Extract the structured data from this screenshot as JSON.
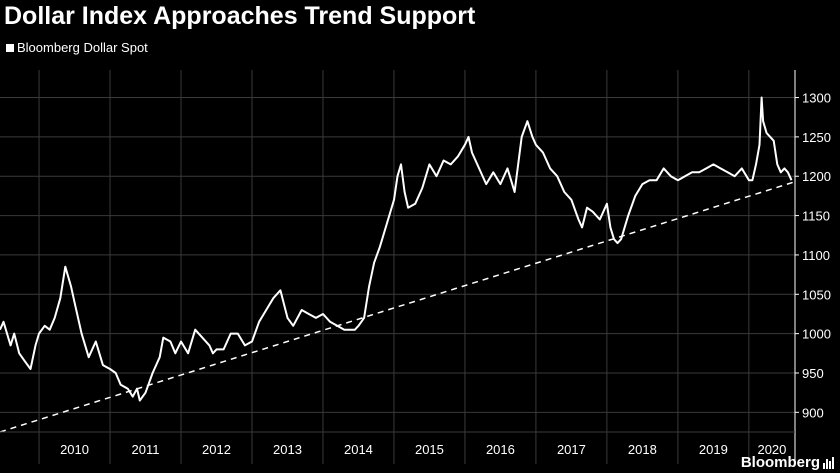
{
  "title": "Dollar Index Approaches Trend Support",
  "brand": "Bloomberg",
  "colors": {
    "background": "#000000",
    "line": "#ffffff",
    "grid": "#3a3a3a",
    "axis_text": "#ffffff"
  },
  "chart_data": {
    "type": "line",
    "title": "Dollar Index Approaches Trend Support",
    "xlabel": "",
    "ylabel": "",
    "ylim": [
      875,
      1335
    ],
    "xlim": [
      2009.45,
      2020.65
    ],
    "yticks": [
      900,
      950,
      1000,
      1050,
      1100,
      1150,
      1200,
      1250,
      1300
    ],
    "xtick_labels": [
      "2010",
      "2011",
      "2012",
      "2013",
      "2014",
      "2015",
      "2016",
      "2017",
      "2018",
      "2019",
      "2020"
    ],
    "grid": "horizontal and vertical, dark gray",
    "legend_position": "top-left",
    "y_axis_side": "right",
    "series": [
      {
        "name": "Bloomberg Dollar Spot",
        "style": "solid",
        "x": [
          2009.45,
          2009.5,
          2009.6,
          2009.65,
          2009.72,
          2009.8,
          2009.88,
          2009.95,
          2010.0,
          2010.08,
          2010.15,
          2010.22,
          2010.3,
          2010.37,
          2010.45,
          2010.5,
          2010.6,
          2010.7,
          2010.8,
          2010.9,
          2011.0,
          2011.08,
          2011.15,
          2011.25,
          2011.32,
          2011.38,
          2011.42,
          2011.5,
          2011.6,
          2011.7,
          2011.75,
          2011.85,
          2011.92,
          2012.0,
          2012.1,
          2012.2,
          2012.3,
          2012.4,
          2012.45,
          2012.5,
          2012.6,
          2012.7,
          2012.8,
          2012.9,
          2013.0,
          2013.1,
          2013.2,
          2013.3,
          2013.4,
          2013.5,
          2013.58,
          2013.7,
          2013.8,
          2013.9,
          2014.0,
          2014.1,
          2014.2,
          2014.3,
          2014.4,
          2014.45,
          2014.5,
          2014.58,
          2014.65,
          2014.72,
          2014.8,
          2014.9,
          2015.0,
          2015.05,
          2015.1,
          2015.15,
          2015.2,
          2015.3,
          2015.4,
          2015.5,
          2015.6,
          2015.7,
          2015.8,
          2015.9,
          2016.0,
          2016.05,
          2016.1,
          2016.2,
          2016.3,
          2016.4,
          2016.5,
          2016.6,
          2016.7,
          2016.8,
          2016.88,
          2016.95,
          2017.0,
          2017.1,
          2017.2,
          2017.3,
          2017.4,
          2017.5,
          2017.6,
          2017.65,
          2017.72,
          2017.8,
          2017.9,
          2018.0,
          2018.05,
          2018.1,
          2018.15,
          2018.2,
          2018.3,
          2018.4,
          2018.5,
          2018.6,
          2018.7,
          2018.8,
          2018.9,
          2019.0,
          2019.1,
          2019.2,
          2019.3,
          2019.4,
          2019.5,
          2019.6,
          2019.7,
          2019.8,
          2019.9,
          2020.0,
          2020.05,
          2020.1,
          2020.15,
          2020.18,
          2020.2,
          2020.25,
          2020.3,
          2020.35,
          2020.4,
          2020.45,
          2020.5,
          2020.55,
          2020.6
        ],
        "values": [
          1005,
          1015,
          985,
          1000,
          975,
          965,
          955,
          985,
          1000,
          1010,
          1005,
          1020,
          1045,
          1085,
          1060,
          1040,
          1000,
          970,
          990,
          960,
          955,
          950,
          935,
          930,
          920,
          930,
          915,
          925,
          950,
          970,
          995,
          990,
          975,
          990,
          975,
          1005,
          995,
          985,
          975,
          980,
          980,
          1000,
          1000,
          985,
          990,
          1015,
          1030,
          1045,
          1055,
          1020,
          1010,
          1030,
          1025,
          1020,
          1025,
          1015,
          1010,
          1005,
          1005,
          1005,
          1010,
          1020,
          1060,
          1090,
          1110,
          1140,
          1170,
          1200,
          1215,
          1180,
          1160,
          1165,
          1185,
          1215,
          1200,
          1220,
          1215,
          1225,
          1240,
          1250,
          1230,
          1210,
          1190,
          1205,
          1190,
          1210,
          1180,
          1250,
          1270,
          1250,
          1240,
          1230,
          1210,
          1200,
          1180,
          1170,
          1145,
          1135,
          1160,
          1155,
          1145,
          1165,
          1135,
          1120,
          1115,
          1120,
          1150,
          1175,
          1190,
          1195,
          1195,
          1210,
          1200,
          1195,
          1200,
          1205,
          1205,
          1210,
          1215,
          1210,
          1205,
          1200,
          1210,
          1195,
          1195,
          1215,
          1240,
          1300,
          1270,
          1255,
          1250,
          1245,
          1215,
          1205,
          1210,
          1205,
          1195
        ]
      },
      {
        "name": "",
        "style": "dashed",
        "x": [
          2009.45,
          2020.65
        ],
        "values": [
          875,
          1193
        ]
      }
    ]
  }
}
